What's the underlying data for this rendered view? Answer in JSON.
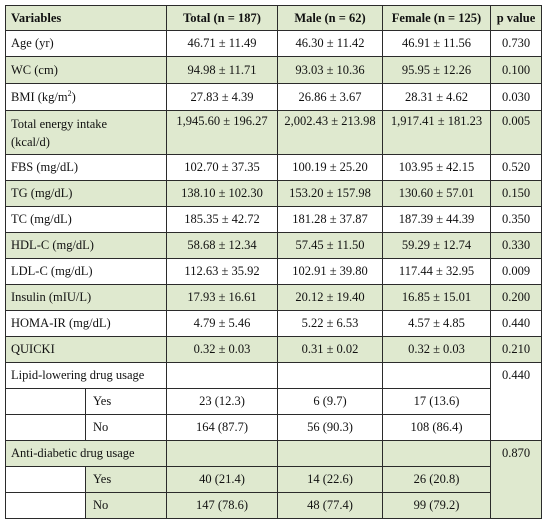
{
  "header": {
    "variables": "Variables",
    "total": "Total (n = 187)",
    "male": "Male (n = 62)",
    "female": "Female (n = 125)",
    "pvalue": "p value"
  },
  "rows": [
    {
      "label": "Age (yr)",
      "total": "46.71 ± 11.49",
      "male": "46.30 ± 11.42",
      "female": "46.91 ± 11.56",
      "p": "0.730"
    },
    {
      "label": "WC (cm)",
      "total": "94.98 ± 11.71",
      "male": "93.03 ± 10.36",
      "female": "95.95 ± 12.26",
      "p": "0.100"
    },
    {
      "label_main": "BMI (kg/m",
      "label_sup": "2",
      "label_tail": ")",
      "total": "27.83 ± 4.39",
      "male": "26.86 ± 3.67",
      "female": "28.31 ± 4.62",
      "p": "0.030"
    },
    {
      "label_line1": "Total energy intake",
      "label_line2": "(kcal/d)",
      "total": "1,945.60 ± 196.27",
      "male": "2,002.43 ± 213.98",
      "female": "1,917.41 ± 181.23",
      "p": "0.005"
    },
    {
      "label": "FBS (mg/dL)",
      "total": "102.70 ± 37.35",
      "male": "100.19 ± 25.20",
      "female": "103.95 ± 42.15",
      "p": "0.520"
    },
    {
      "label": "TG (mg/dL)",
      "total": "138.10 ± 102.30",
      "male": "153.20 ± 157.98",
      "female": "130.60 ± 57.01",
      "p": "0.150"
    },
    {
      "label": "TC (mg/dL)",
      "total": "185.35 ± 42.72",
      "male": "181.28 ± 37.87",
      "female": "187.39 ± 44.39",
      "p": "0.350"
    },
    {
      "label": "HDL-C (mg/dL)",
      "total": "58.68 ± 12.34",
      "male": "57.45 ± 11.50",
      "female": "59.29 ± 12.74",
      "p": "0.330"
    },
    {
      "label": "LDL-C (mg/dL)",
      "total": "112.63 ± 35.92",
      "male": "102.91 ± 39.80",
      "female": "117.44 ± 32.95",
      "p": "0.009"
    },
    {
      "label": "Insulin (mIU/L)",
      "total": "17.93 ± 16.61",
      "male": "20.12 ± 19.40",
      "female": "16.85 ± 15.01",
      "p": "0.200"
    },
    {
      "label": "HOMA-IR (mg/dL)",
      "total": "4.79 ± 5.46",
      "male": "5.22 ± 6.53",
      "female": "4.57 ± 4.85",
      "p": "0.440"
    },
    {
      "label": "QUICKI",
      "total": "0.32 ± 0.03",
      "male": "0.31 ± 0.02",
      "female": "0.32 ± 0.03",
      "p": "0.210"
    }
  ],
  "lipid": {
    "label": "Lipid-lowering drug usage",
    "p": "0.440",
    "yes": {
      "label": "Yes",
      "total": "23 (12.3)",
      "male": "6 (9.7)",
      "female": "17 (13.6)"
    },
    "no": {
      "label": "No",
      "total": "164 (87.7)",
      "male": "56 (90.3)",
      "female": "108 (86.4)"
    }
  },
  "diabetic": {
    "label": "Anti-diabetic drug usage",
    "p": "0.870",
    "yes": {
      "label": "Yes",
      "total": "40 (21.4)",
      "male": "14 (22.6)",
      "female": "26 (20.8)"
    },
    "no": {
      "label": "No",
      "total": "147 (78.6)",
      "male": "48 (77.4)",
      "female": "99 (79.2)"
    }
  },
  "colors": {
    "shade": "#dfe9cf",
    "border": "#2b2b2b"
  }
}
